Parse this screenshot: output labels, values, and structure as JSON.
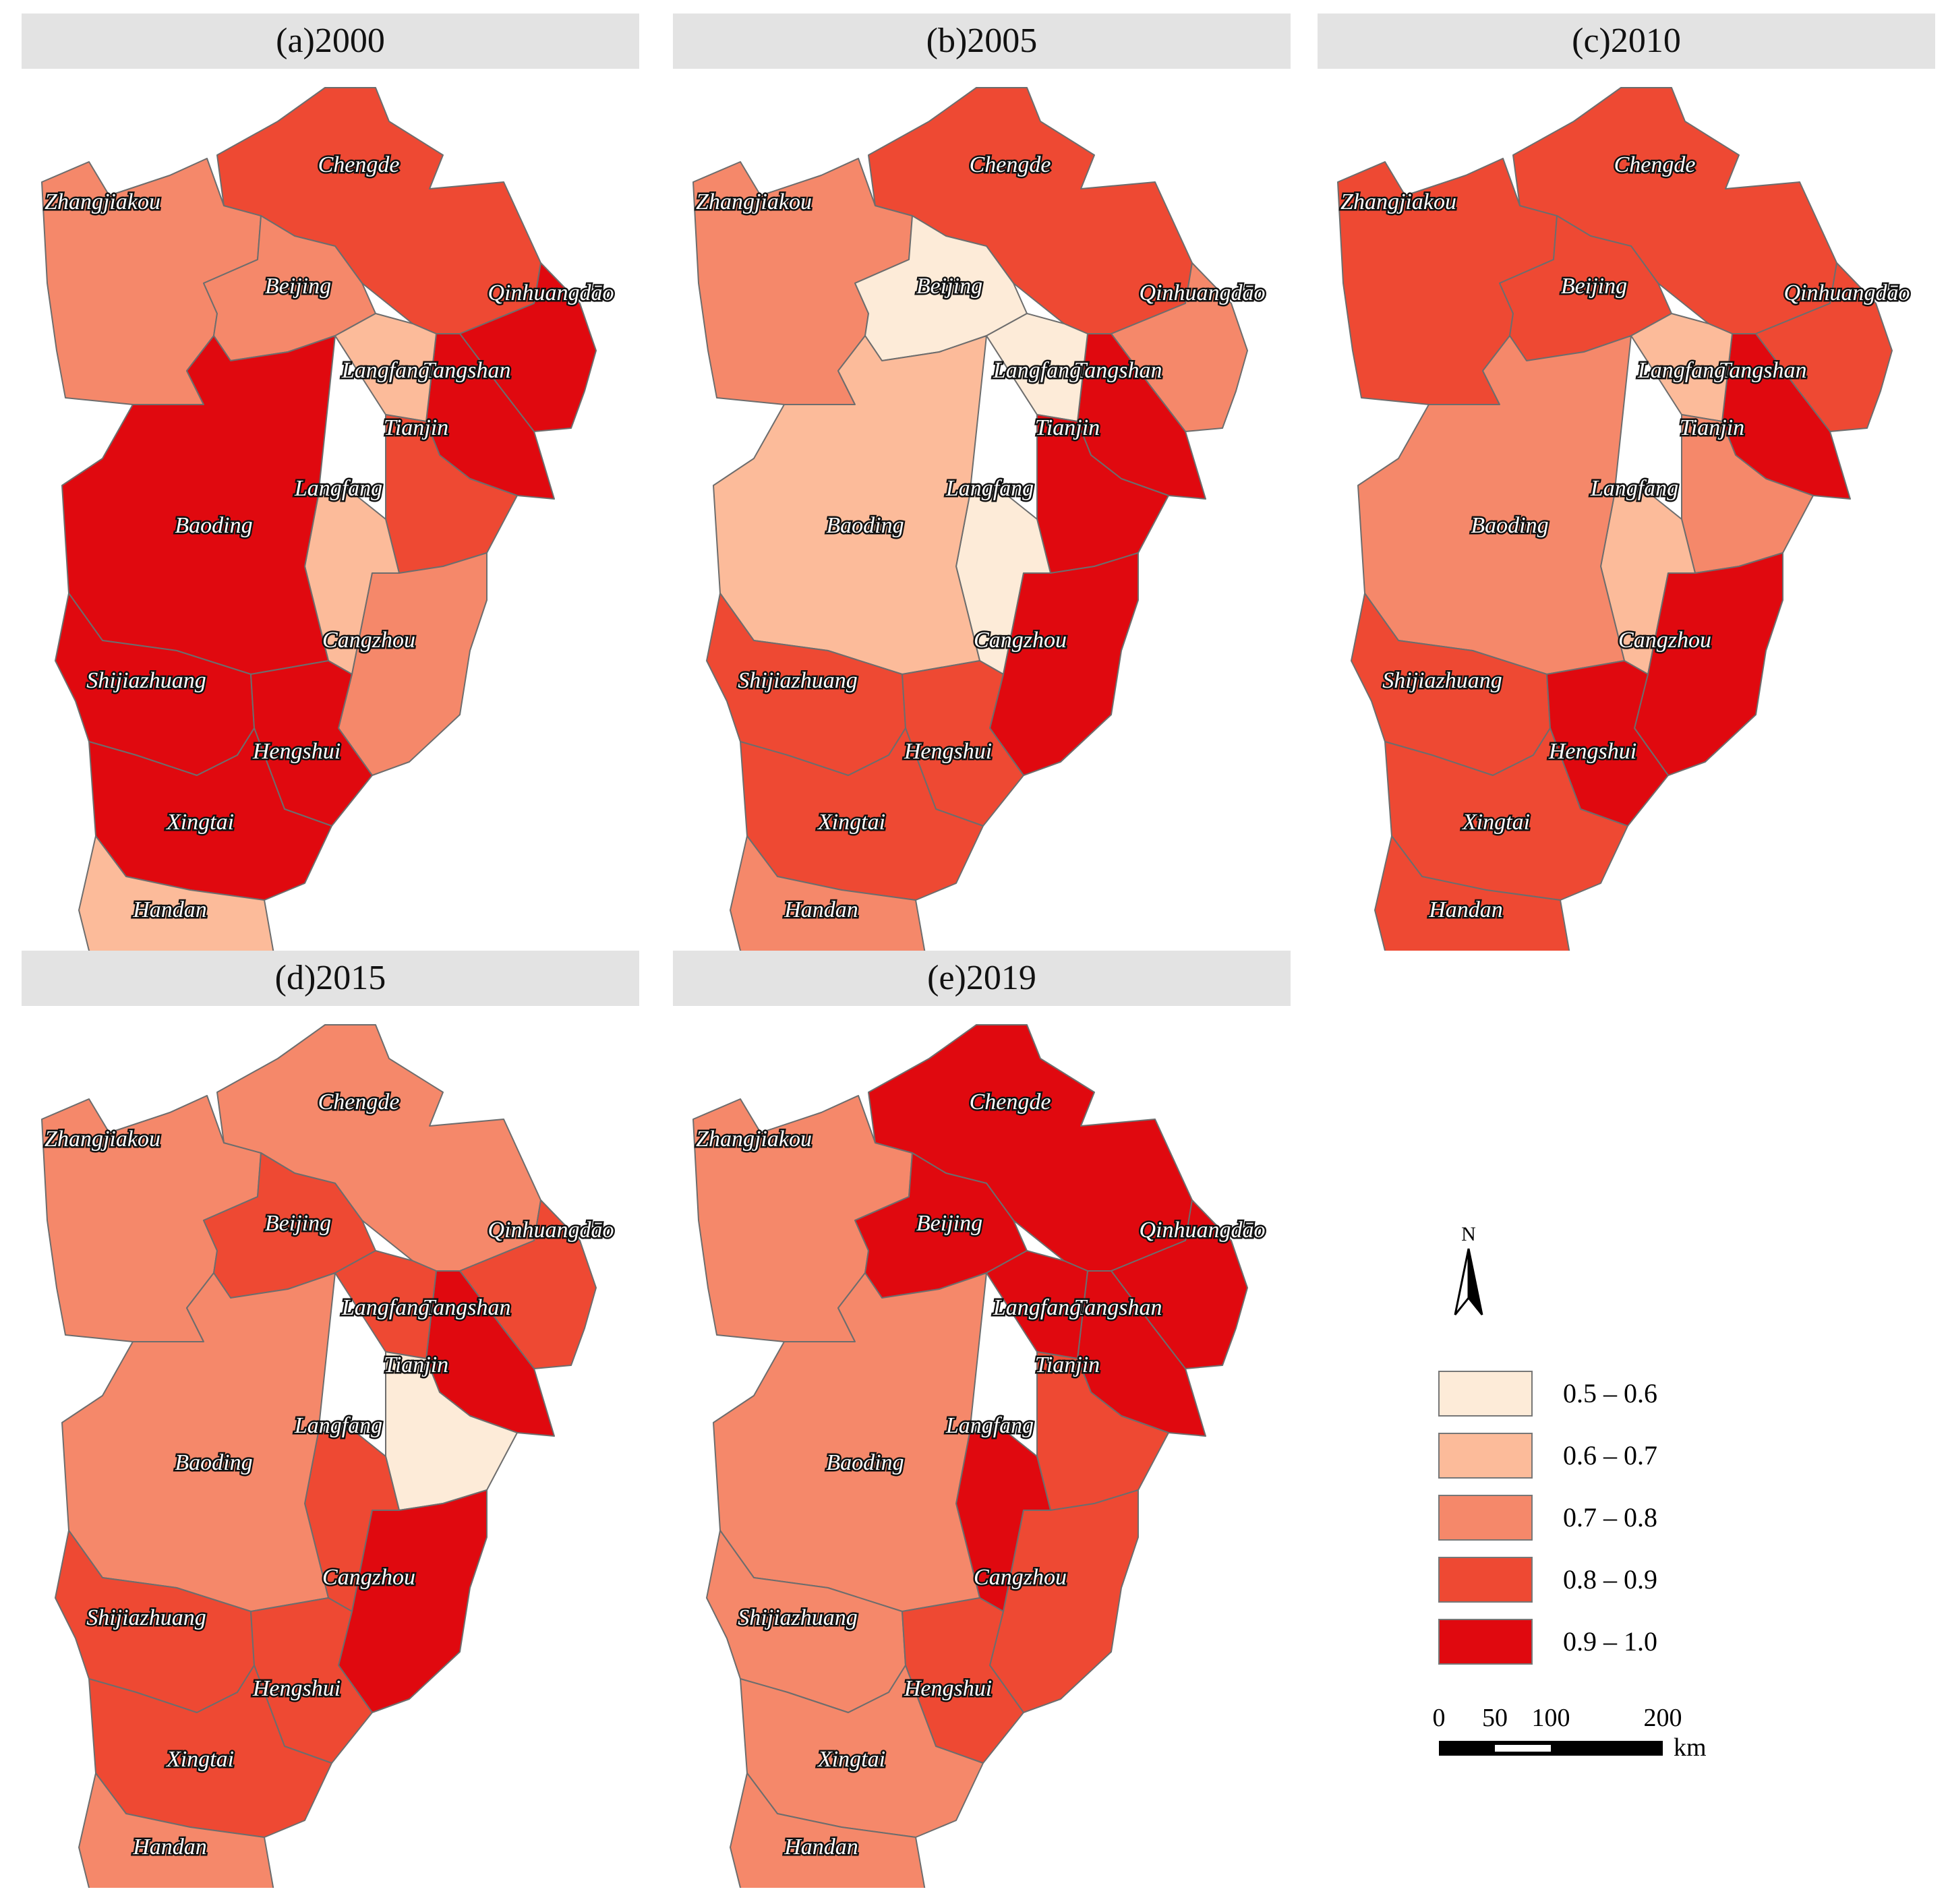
{
  "legend": {
    "classes": [
      {
        "label": "0.5 – 0.6",
        "color": "#fdebd8"
      },
      {
        "label": "0.6 – 0.7",
        "color": "#fcbb9a"
      },
      {
        "label": "0.7 – 0.8",
        "color": "#f5886a"
      },
      {
        "label": "0.8 – 0.9",
        "color": "#ee4933"
      },
      {
        "label": "0.9 – 1.0",
        "color": "#e0090f"
      }
    ],
    "north": "N",
    "scale_ticks": [
      "0",
      "50",
      "100",
      "200"
    ],
    "scale_unit": "km"
  },
  "panels": [
    {
      "title": "(a)2000",
      "classes": {
        "Chengde": 3,
        "Zhangjiakou": 2,
        "Beijing": 2,
        "Langfang_north": 1,
        "Qinhuangdao": 4,
        "Tangshan": 4,
        "Tianjin": 3,
        "Langfang_south": 1,
        "Baoding": 4,
        "Cangzhou": 2,
        "Shijiazhuang": 4,
        "Hengshui": 4,
        "Xingtai": 4,
        "Handan": 1
      }
    },
    {
      "title": "(b)2005",
      "classes": {
        "Chengde": 3,
        "Zhangjiakou": 2,
        "Beijing": 0,
        "Langfang_north": 0,
        "Qinhuangdao": 2,
        "Tangshan": 4,
        "Tianjin": 4,
        "Langfang_south": 0,
        "Baoding": 1,
        "Cangzhou": 4,
        "Shijiazhuang": 3,
        "Hengshui": 3,
        "Xingtai": 3,
        "Handan": 2
      }
    },
    {
      "title": "(c)2010",
      "classes": {
        "Chengde": 3,
        "Zhangjiakou": 3,
        "Beijing": 3,
        "Langfang_north": 1,
        "Qinhuangdao": 3,
        "Tangshan": 4,
        "Tianjin": 2,
        "Langfang_south": 1,
        "Baoding": 2,
        "Cangzhou": 4,
        "Shijiazhuang": 3,
        "Hengshui": 4,
        "Xingtai": 3,
        "Handan": 3
      }
    },
    {
      "title": "(d)2015",
      "classes": {
        "Chengde": 2,
        "Zhangjiakou": 2,
        "Beijing": 3,
        "Langfang_north": 3,
        "Qinhuangdao": 3,
        "Tangshan": 4,
        "Tianjin": 0,
        "Langfang_south": 3,
        "Baoding": 2,
        "Cangzhou": 4,
        "Shijiazhuang": 3,
        "Hengshui": 3,
        "Xingtai": 3,
        "Handan": 2
      }
    },
    {
      "title": "(e)2019",
      "classes": {
        "Chengde": 4,
        "Zhangjiakou": 2,
        "Beijing": 4,
        "Langfang_north": 4,
        "Qinhuangdao": 4,
        "Tangshan": 4,
        "Tianjin": 3,
        "Langfang_south": 4,
        "Baoding": 2,
        "Cangzhou": 3,
        "Shijiazhuang": 2,
        "Hengshui": 3,
        "Xingtai": 2,
        "Handan": 2
      }
    }
  ],
  "city_labels": {
    "Chengde": "Chengde",
    "Zhangjiakou": "Zhangjiakou",
    "Beijing": "Beijing",
    "Langfang_north": "Langfang",
    "Qinhuangdao": "Qinhuangdāo",
    "Tangshan": "Tangshan",
    "Tianjin": "Tianjin",
    "Langfang_south": "Langfang",
    "Baoding": "Baoding",
    "Cangzhou": "Cangzhou",
    "Shijiazhuang": "Shijiazhuang",
    "Hengshui": "Hengshui",
    "Xingtai": "Xingtai",
    "Handan": "Handan"
  }
}
